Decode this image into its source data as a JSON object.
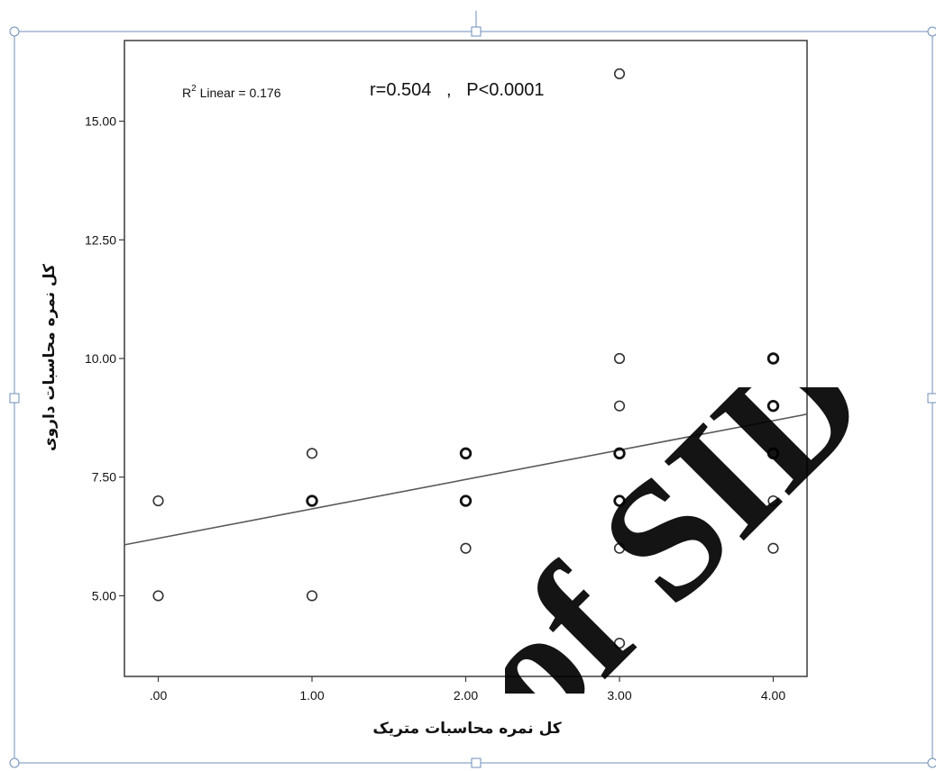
{
  "chart_data": {
    "type": "scatter",
    "annotations": {
      "r2_prefix": "R",
      "r2_sup": "2",
      "r2_suffix": " Linear = 0.176",
      "stats": "r=0.504   ,   P<0.0001"
    },
    "xlabel": "کل نمره محاسبات متریک",
    "ylabel": "کل نمره محاسبات داروی",
    "xlim": [
      -0.22,
      4.22
    ],
    "ylim": [
      3.3,
      16.7
    ],
    "x_ticks": [
      {
        "value": 0,
        "label": ".00"
      },
      {
        "value": 1,
        "label": "1.00"
      },
      {
        "value": 2,
        "label": "2.00"
      },
      {
        "value": 3,
        "label": "3.00"
      },
      {
        "value": 4,
        "label": "4.00"
      }
    ],
    "y_ticks": [
      {
        "value": 5,
        "label": "5.00"
      },
      {
        "value": 7.5,
        "label": "7.50"
      },
      {
        "value": 10,
        "label": "10.00"
      },
      {
        "value": 12.5,
        "label": "12.50"
      },
      {
        "value": 15,
        "label": "15.00"
      }
    ],
    "points": [
      {
        "x": 0,
        "y": 7
      },
      {
        "x": 0,
        "y": 5
      },
      {
        "x": 1,
        "y": 8
      },
      {
        "x": 1,
        "y": 7
      },
      {
        "x": 1,
        "y": 5
      },
      {
        "x": 2,
        "y": 8
      },
      {
        "x": 2,
        "y": 7
      },
      {
        "x": 2,
        "y": 6
      },
      {
        "x": 3,
        "y": 16
      },
      {
        "x": 3,
        "y": 10
      },
      {
        "x": 3,
        "y": 9
      },
      {
        "x": 3,
        "y": 8
      },
      {
        "x": 3,
        "y": 7
      },
      {
        "x": 3,
        "y": 6
      },
      {
        "x": 3,
        "y": 4
      },
      {
        "x": 4,
        "y": 10
      },
      {
        "x": 4,
        "y": 9
      },
      {
        "x": 4,
        "y": 8
      },
      {
        "x": 4,
        "y": 7
      },
      {
        "x": 4,
        "y": 6
      }
    ],
    "bold_points": [
      {
        "x": 1,
        "y": 7
      },
      {
        "x": 2,
        "y": 8
      },
      {
        "x": 2,
        "y": 7
      },
      {
        "x": 3,
        "y": 8
      },
      {
        "x": 3,
        "y": 7
      },
      {
        "x": 4,
        "y": 10
      },
      {
        "x": 4,
        "y": 9
      },
      {
        "x": 4,
        "y": 8
      }
    ],
    "fit_line": {
      "intercept": 6.21,
      "slope": 0.62
    },
    "grid": false,
    "colors": {
      "points": "#333333",
      "line": "#5a5a5a",
      "frame": "#3c3c3c",
      "selection": "#6f8fb8",
      "watermark": "#000000"
    }
  },
  "watermark": {
    "text": "of SID"
  }
}
